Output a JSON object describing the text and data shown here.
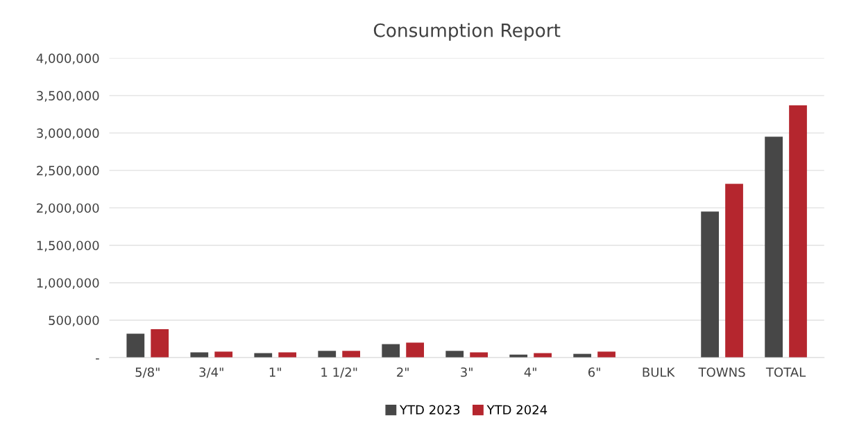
{
  "chart_data": {
    "type": "bar",
    "title": "Consumption Report",
    "categories": [
      "5/8\"",
      "3/4\"",
      "1\"",
      "1 1/2\"",
      "2\"",
      "3\"",
      "4\"",
      "6\"",
      "BULK",
      "TOWNS",
      "TOTAL"
    ],
    "series": [
      {
        "name": "YTD 2023",
        "color": "#474747",
        "values": [
          320000,
          70000,
          60000,
          90000,
          180000,
          90000,
          40000,
          50000,
          null,
          1950000,
          2950000
        ]
      },
      {
        "name": "YTD 2024",
        "color": "#b5262e",
        "values": [
          380000,
          80000,
          70000,
          90000,
          200000,
          70000,
          60000,
          80000,
          null,
          2320000,
          3370000
        ]
      }
    ],
    "ylim": [
      0,
      4000000
    ],
    "yticks": [
      {
        "value": 0,
        "label": "-"
      },
      {
        "value": 500000,
        "label": "500,000"
      },
      {
        "value": 1000000,
        "label": "1,000,000"
      },
      {
        "value": 1500000,
        "label": "1,500,000"
      },
      {
        "value": 2000000,
        "label": "2,000,000"
      },
      {
        "value": 2500000,
        "label": "2,500,000"
      },
      {
        "value": 3000000,
        "label": "3,000,000"
      },
      {
        "value": 3500000,
        "label": "3,500,000"
      },
      {
        "value": 4000000,
        "label": "4,000,000"
      }
    ],
    "grid": "y",
    "legend": "bottom"
  }
}
